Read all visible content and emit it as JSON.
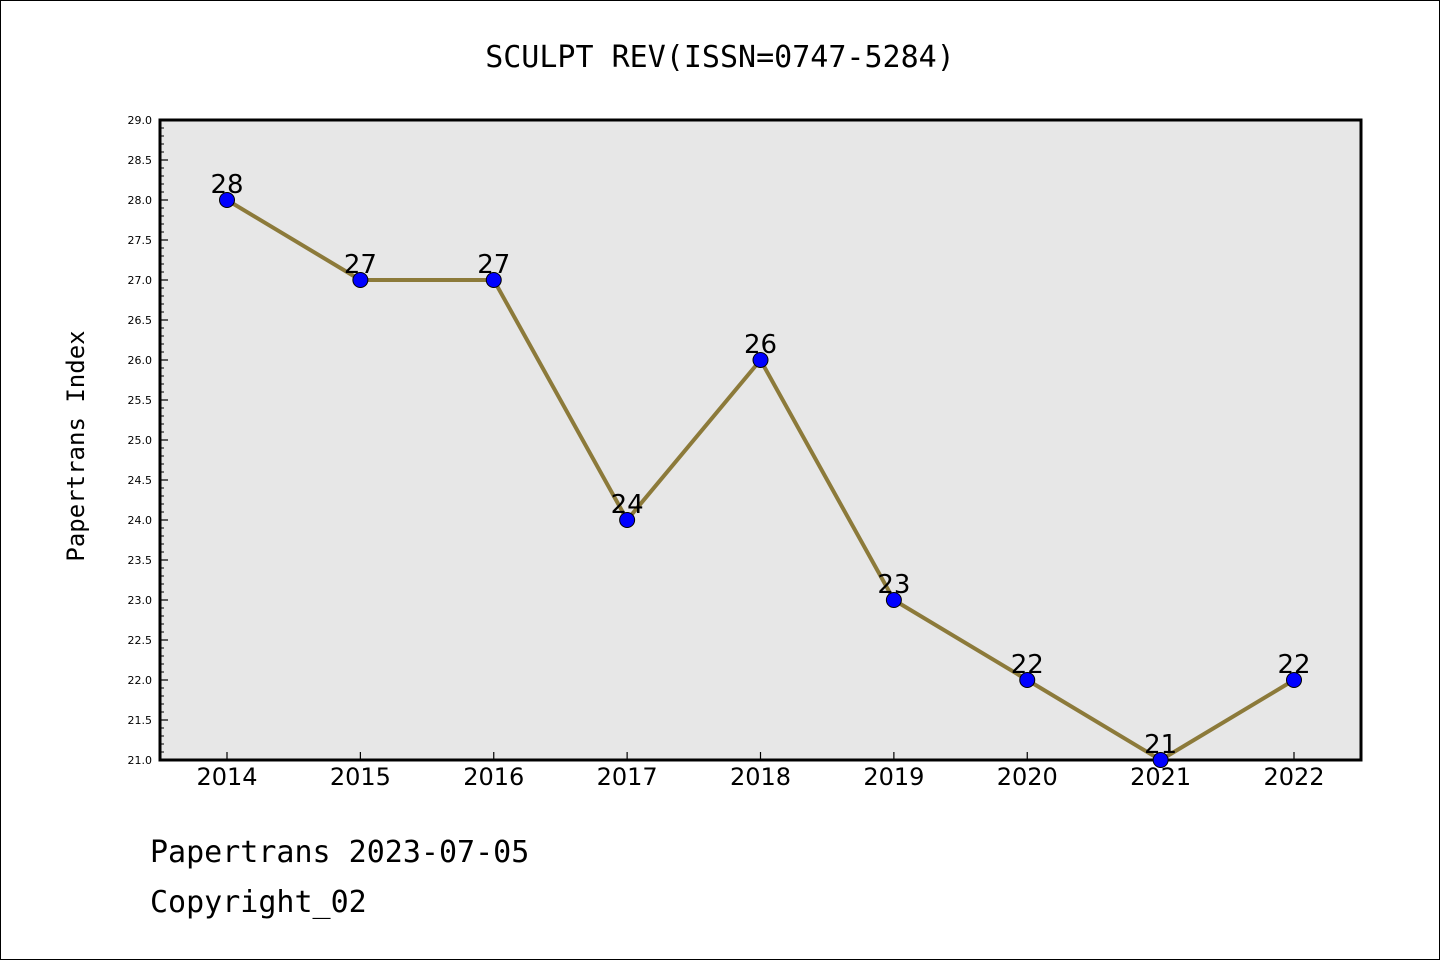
{
  "chart_data": {
    "type": "line",
    "title": "SCULPT REV(ISSN=0747-5284)",
    "xlabel": "",
    "ylabel": "Papertrans Index",
    "categories": [
      "2014",
      "2015",
      "2016",
      "2017",
      "2018",
      "2019",
      "2020",
      "2021",
      "2022"
    ],
    "values": [
      28,
      27,
      27,
      24,
      26,
      23,
      22,
      21,
      22
    ],
    "data_labels": [
      "28",
      "27",
      "27",
      "24",
      "26",
      "23",
      "22",
      "21",
      "22"
    ],
    "ylim": [
      21.0,
      29.0
    ],
    "y_ticks": [
      "21.0",
      "21.5",
      "22.0",
      "22.5",
      "23.0",
      "23.5",
      "24.0",
      "24.5",
      "25.0",
      "25.5",
      "26.0",
      "26.5",
      "27.0",
      "27.5",
      "28.0",
      "28.5",
      "29.0"
    ],
    "y_tick_step": 0.5,
    "grid": false,
    "colors": {
      "line": "#8c7a3a",
      "marker": "#0000ff",
      "plot_background": "#e7e7e7"
    }
  },
  "footer": {
    "line1": "Papertrans 2023-07-05",
    "line2": "Copyright_02"
  }
}
